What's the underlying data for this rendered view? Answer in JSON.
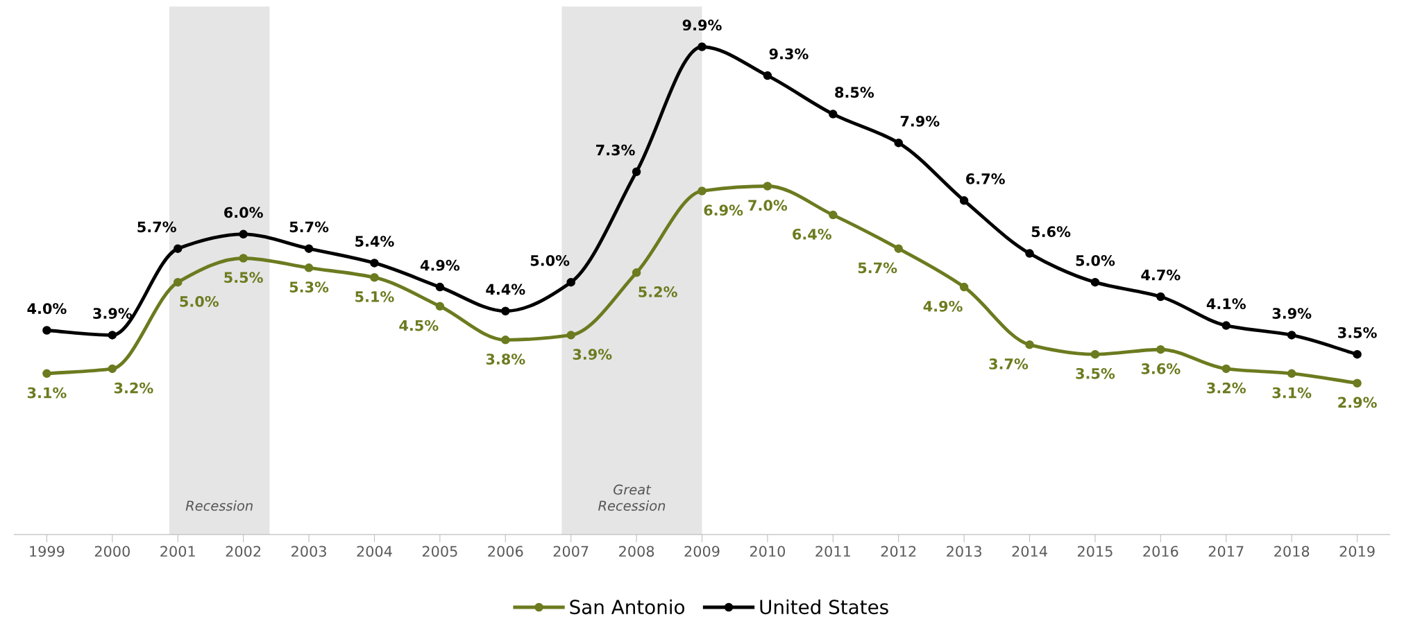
{
  "chart_data": {
    "type": "line",
    "x": [
      1999,
      2000,
      2001,
      2002,
      2003,
      2004,
      2005,
      2006,
      2007,
      2008,
      2009,
      2010,
      2011,
      2012,
      2013,
      2014,
      2015,
      2016,
      2017,
      2018,
      2019
    ],
    "xlim": [
      1998.5,
      2019.5
    ],
    "xticks": [
      1999,
      2000,
      2001,
      2002,
      2003,
      2004,
      2005,
      2006,
      2007,
      2008,
      2009,
      2010,
      2011,
      2012,
      2013,
      2014,
      2015,
      2016,
      2017,
      2018,
      2019
    ],
    "tick_labels": "x",
    "grid": false,
    "legend": "bottom",
    "marker": "circle",
    "line_style": "solid",
    "series": [
      {
        "name": "San Antonio",
        "color": "#6b7b1f",
        "values": [
          3.1,
          3.2,
          5.0,
          5.5,
          5.3,
          5.1,
          4.5,
          3.8,
          3.9,
          5.2,
          6.9,
          7.0,
          6.4,
          5.7,
          4.9,
          3.7,
          3.5,
          3.6,
          3.2,
          3.1,
          2.9
        ],
        "value_labels": [
          "3.1%",
          "3.2%",
          "5.0%",
          "5.5%",
          "5.3%",
          "5.1%",
          "4.5%",
          "3.8%",
          "3.9%",
          "5.2%",
          "6.9%",
          "7.0%",
          "6.4%",
          "5.7%",
          "4.9%",
          "3.7%",
          "3.5%",
          "3.6%",
          "3.2%",
          "3.1%",
          "2.9%"
        ]
      },
      {
        "name": "United States",
        "color": "#000000",
        "values": [
          4.0,
          3.9,
          5.7,
          6.0,
          5.7,
          5.4,
          4.9,
          4.4,
          5.0,
          7.3,
          9.9,
          9.3,
          8.5,
          7.9,
          6.7,
          5.6,
          5.0,
          4.7,
          4.1,
          3.9,
          3.5
        ],
        "value_labels": [
          "4.0%",
          "3.9%",
          "5.7%",
          "6.0%",
          "5.7%",
          "5.4%",
          "4.9%",
          "4.4%",
          "5.0%",
          "7.3%",
          "9.9%",
          "9.3%",
          "8.5%",
          "7.9%",
          "6.7%",
          "5.6%",
          "5.0%",
          "4.7%",
          "4.1%",
          "3.9%",
          "3.5%"
        ]
      }
    ],
    "bands": [
      {
        "axis": "x",
        "from": 2000.87,
        "to": 2002.4,
        "label": "Recession",
        "color": "#e5e5e5"
      },
      {
        "axis": "x",
        "from": 2006.86,
        "to": 2009.0,
        "label": "Great\nRecession",
        "color": "#e5e5e5"
      }
    ]
  }
}
